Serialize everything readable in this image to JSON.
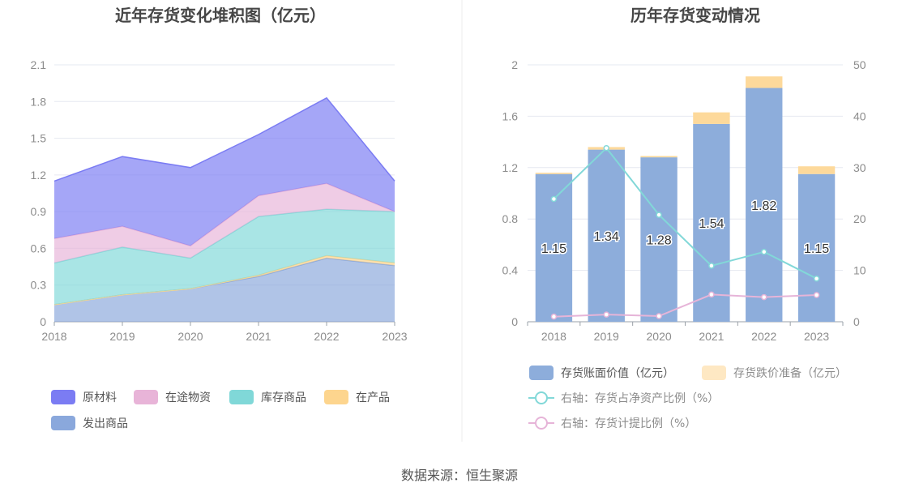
{
  "source_text": "数据来源：恒生聚源",
  "chart_data": [
    {
      "type": "area",
      "title": "近年存货变化堆积图（亿元）",
      "x": [
        "2018",
        "2019",
        "2020",
        "2021",
        "2022",
        "2023"
      ],
      "ylim": [
        0,
        2.1
      ],
      "yticks": [
        "0",
        "0.3",
        "0.6",
        "0.9",
        "1.2",
        "1.5",
        "1.8",
        "2.1"
      ],
      "stacked": true,
      "legend_position": "bottom-left",
      "series": [
        {
          "name": "发出商品",
          "color": "#8aa8dc",
          "values": [
            0.14,
            0.22,
            0.27,
            0.37,
            0.52,
            0.46
          ]
        },
        {
          "name": "在产品",
          "color": "#fdd58e",
          "values": [
            0.0,
            0.0,
            0.0,
            0.01,
            0.02,
            0.02
          ]
        },
        {
          "name": "库存商品",
          "color": "#80d8d8",
          "values": [
            0.34,
            0.39,
            0.25,
            0.48,
            0.38,
            0.42
          ]
        },
        {
          "name": "在途物资",
          "color": "#e8b4d8",
          "values": [
            0.2,
            0.17,
            0.1,
            0.17,
            0.21,
            0.0
          ]
        },
        {
          "name": "原材料",
          "color": "#7b7cf3",
          "values": [
            0.47,
            0.57,
            0.64,
            0.5,
            0.7,
            0.25
          ]
        }
      ],
      "legend_order": [
        "原材料",
        "在途物资",
        "库存商品",
        "在产品",
        "发出商品"
      ]
    },
    {
      "type": "bar",
      "title": "历年存货变动情况",
      "x": [
        "2018",
        "2019",
        "2020",
        "2021",
        "2022",
        "2023"
      ],
      "ylim": [
        0,
        2
      ],
      "yticks": [
        "0",
        "0.4",
        "0.8",
        "1.2",
        "1.6",
        "2"
      ],
      "y2lim": [
        0,
        50
      ],
      "y2ticks": [
        "0",
        "10",
        "20",
        "30",
        "40",
        "50"
      ],
      "stacked": true,
      "bar_series": [
        {
          "name": "存货账面价值（亿元）",
          "color": "#8daddb",
          "values": [
            1.15,
            1.34,
            1.28,
            1.54,
            1.82,
            1.15
          ],
          "labels": [
            "1.15",
            "1.34",
            "1.28",
            "1.54",
            "1.82",
            "1.15"
          ]
        },
        {
          "name": "存货跌价准备（亿元）",
          "color": "#fdd99b",
          "values": [
            0.01,
            0.02,
            0.01,
            0.09,
            0.09,
            0.06
          ]
        }
      ],
      "line_series": [
        {
          "name": "右轴：存货占净资产比例（%）",
          "color": "#82d8d8",
          "axis": "right",
          "values": [
            23.9,
            33.8,
            20.8,
            10.9,
            13.6,
            8.4
          ]
        },
        {
          "name": "右轴：存货计提比例（%）",
          "color": "#e6b4d8",
          "axis": "right",
          "values": [
            1.0,
            1.4,
            1.1,
            5.3,
            4.8,
            5.2
          ]
        }
      ]
    }
  ]
}
